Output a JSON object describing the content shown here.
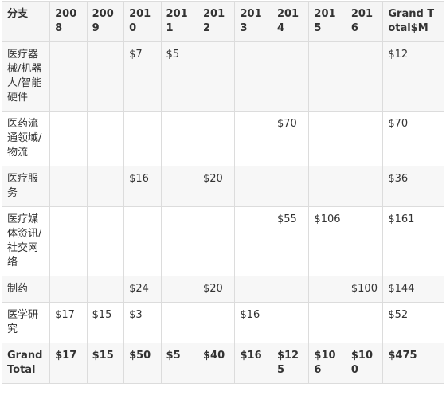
{
  "table": {
    "headers": [
      "分支",
      "2008",
      "2009",
      "2010",
      "2011",
      "2012",
      "2013",
      "2014",
      "2015",
      "2016",
      "Grand Total$M"
    ],
    "rows": [
      [
        "医疗器械/机器人/智能硬件",
        "",
        "",
        "$7",
        "$5",
        "",
        "",
        "",
        "",
        "",
        "$12"
      ],
      [
        "医药流通领域/物流",
        "",
        "",
        "",
        "",
        "",
        "",
        "$70",
        "",
        "",
        "$70"
      ],
      [
        "医疗服务",
        "",
        "",
        "$16",
        "",
        "$20",
        "",
        "",
        "",
        "",
        "$36"
      ],
      [
        "医疗媒体资讯/社交网络",
        "",
        "",
        "",
        "",
        "",
        "",
        "$55",
        "$106",
        "",
        "$161"
      ],
      [
        "制药",
        "",
        "",
        "$24",
        "",
        "$20",
        "",
        "",
        "",
        "$100",
        "$144"
      ],
      [
        "医学研究",
        "$17",
        "$15",
        "$3",
        "",
        "",
        "$16",
        "",
        "",
        "",
        "$52"
      ]
    ],
    "total_row": [
      "Grand Total",
      "$17",
      "$15",
      "$50",
      "$5",
      "$40",
      "$16",
      "$125",
      "$106",
      "$100",
      "$475"
    ]
  }
}
